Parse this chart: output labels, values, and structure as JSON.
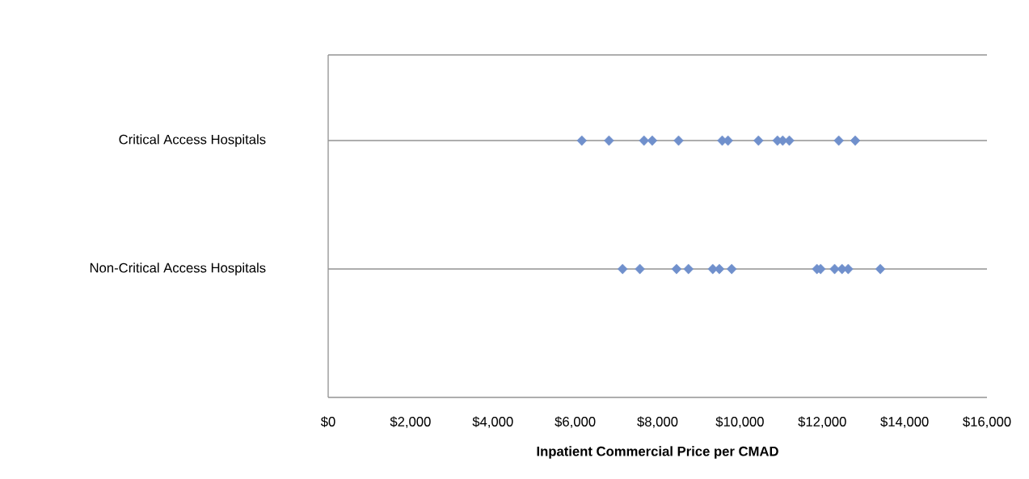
{
  "chart_data": {
    "type": "scatter",
    "orientation": "horizontal",
    "xlabel": "Inpatient Commercial Price per CMAD",
    "categories": [
      "Critical Access Hospitals",
      "Non-Critical Access Hospitals"
    ],
    "series": [
      {
        "color": "#7090cc",
        "x": [
          "Critical Access Hospitals",
          "Critical Access Hospitals",
          "Critical Access Hospitals",
          "Critical Access Hospitals",
          "Critical Access Hospitals",
          "Critical Access Hospitals",
          "Critical Access Hospitals",
          "Critical Access Hospitals",
          "Critical Access Hospitals",
          "Critical Access Hospitals",
          "Critical Access Hospitals",
          "Critical Access Hospitals",
          "Critical Access Hospitals"
        ],
        "values": [
          6160,
          6820,
          7670,
          7870,
          8510,
          9570,
          9710,
          10450,
          10910,
          11040,
          11200,
          12400,
          12800
        ]
      },
      {
        "color": "#7090cc",
        "x": [
          "Non-Critical Access Hospitals",
          "Non-Critical Access Hospitals",
          "Non-Critical Access Hospitals",
          "Non-Critical Access Hospitals",
          "Non-Critical Access Hospitals",
          "Non-Critical Access Hospitals",
          "Non-Critical Access Hospitals",
          "Non-Critical Access Hospitals",
          "Non-Critical Access Hospitals",
          "Non-Critical Access Hospitals",
          "Non-Critical Access Hospitals",
          "Non-Critical Access Hospitals",
          "Non-Critical Access Hospitals"
        ],
        "values": [
          7150,
          7570,
          8460,
          8750,
          9340,
          9500,
          9800,
          11870,
          11960,
          12300,
          12480,
          12630,
          13410
        ]
      }
    ],
    "xlim": [
      0,
      16000
    ],
    "xticks": [
      {
        "value": 0,
        "label": "$0"
      },
      {
        "value": 2000,
        "label": "$2,000"
      },
      {
        "value": 4000,
        "label": "$4,000"
      },
      {
        "value": 6000,
        "label": "$6,000"
      },
      {
        "value": 8000,
        "label": "$8,000"
      },
      {
        "value": 10000,
        "label": "$10,000"
      },
      {
        "value": 12000,
        "label": "$12,000"
      },
      {
        "value": 14000,
        "label": "$14,000"
      },
      {
        "value": 16000,
        "label": "$16,000"
      }
    ],
    "grid": "y",
    "marker": "diamond"
  }
}
